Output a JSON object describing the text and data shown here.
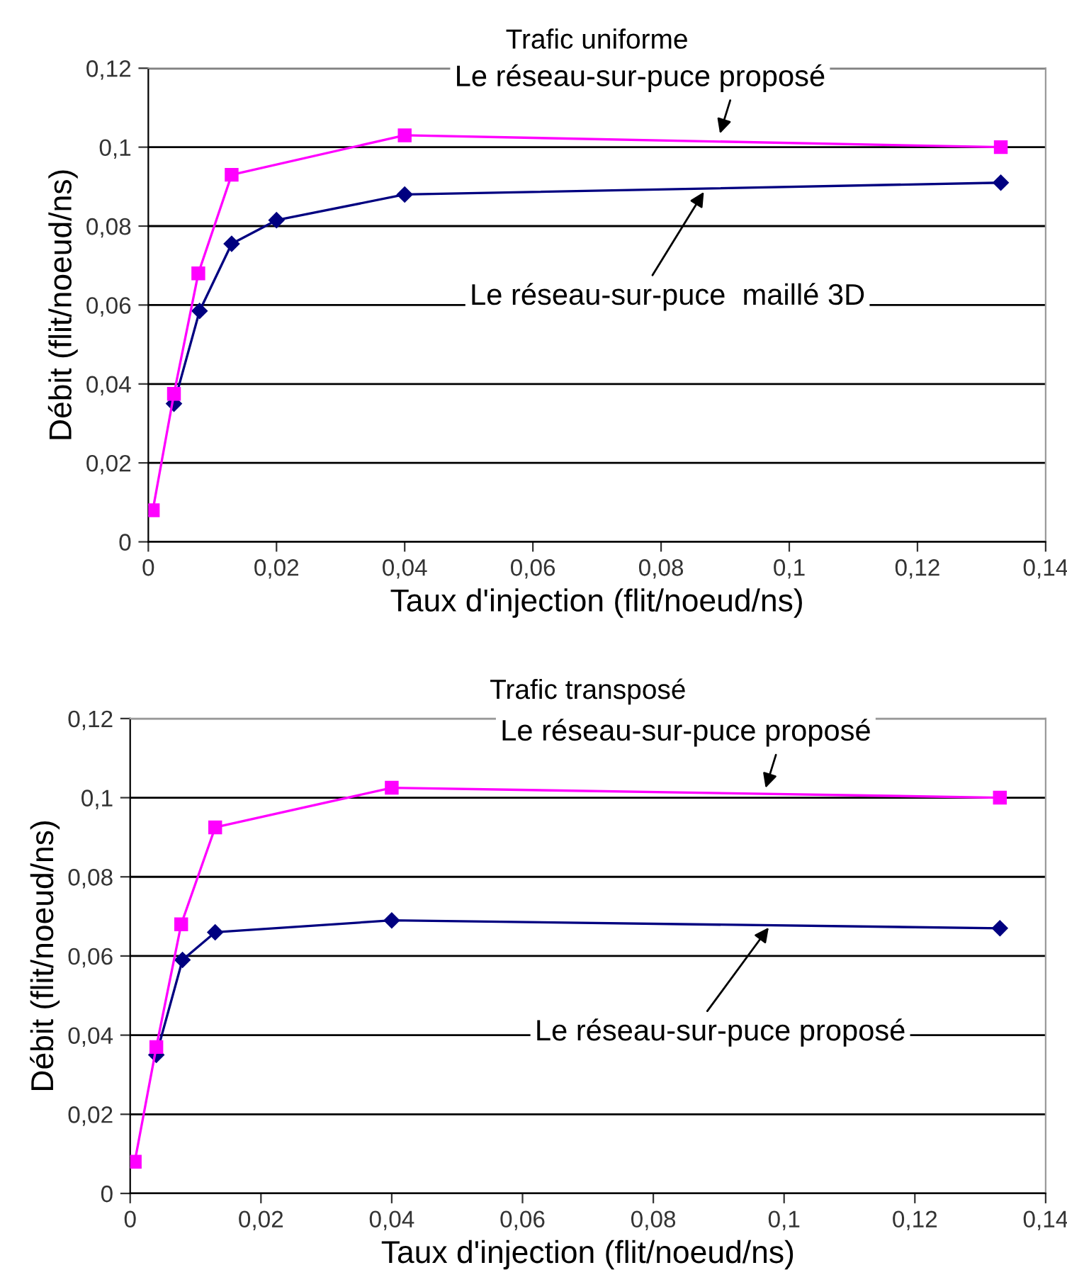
{
  "chart_data": [
    {
      "type": "line",
      "title": "Trafic uniforme",
      "xlabel": "Taux d'injection (flit/noeud/ns)",
      "ylabel": "Débit (flit/noeud/ns)",
      "xlim": [
        0,
        0.14
      ],
      "ylim": [
        0,
        0.12
      ],
      "xticks": [
        {
          "value": 0,
          "label": "0"
        },
        {
          "value": 0.02,
          "label": "0,02"
        },
        {
          "value": 0.04,
          "label": "0,04"
        },
        {
          "value": 0.06,
          "label": "0,06"
        },
        {
          "value": 0.08,
          "label": "0,08"
        },
        {
          "value": 0.1,
          "label": "0,1"
        },
        {
          "value": 0.12,
          "label": "0,12"
        },
        {
          "value": 0.14,
          "label": "0,14"
        }
      ],
      "yticks": [
        {
          "value": 0,
          "label": "0"
        },
        {
          "value": 0.02,
          "label": "0,02"
        },
        {
          "value": 0.04,
          "label": "0,04"
        },
        {
          "value": 0.06,
          "label": "0,06"
        },
        {
          "value": 0.08,
          "label": "0,08"
        },
        {
          "value": 0.1,
          "label": "0,1"
        },
        {
          "value": 0.12,
          "label": "0,12"
        }
      ],
      "grid": "y",
      "legend": false,
      "series": [
        {
          "color": "#ff00ff",
          "marker": "square",
          "x": [
            0.0007,
            0.004,
            0.0078,
            0.013,
            0.04,
            0.133
          ],
          "values": [
            0.008,
            0.0375,
            0.068,
            0.093,
            0.103,
            0.1
          ]
        },
        {
          "color": "#000080",
          "marker": "diamond",
          "x": [
            0.004,
            0.008,
            0.013,
            0.02,
            0.04,
            0.133
          ],
          "values": [
            0.035,
            0.0585,
            0.0755,
            0.0815,
            0.088,
            0.091
          ]
        }
      ],
      "annotations": [
        {
          "text": "Le réseau-sur-puce proposé",
          "x": 0.089,
          "y": 0.1025
        },
        {
          "text": "Le réseau-sur-puce  maillé 3D",
          "x": 0.087,
          "y": 0.0895
        }
      ]
    },
    {
      "type": "line",
      "title": "Trafic transposé",
      "xlabel": "Taux d'injection (flit/noeud/ns)",
      "ylabel": "Débit (flit/noeud/ns)",
      "xlim": [
        0,
        0.14
      ],
      "ylim": [
        0,
        0.12
      ],
      "xticks": [
        {
          "value": 0,
          "label": "0"
        },
        {
          "value": 0.02,
          "label": "0,02"
        },
        {
          "value": 0.04,
          "label": "0,04"
        },
        {
          "value": 0.06,
          "label": "0,06"
        },
        {
          "value": 0.08,
          "label": "0,08"
        },
        {
          "value": 0.1,
          "label": "0,1"
        },
        {
          "value": 0.12,
          "label": "0,12"
        },
        {
          "value": 0.14,
          "label": "0,14"
        }
      ],
      "yticks": [
        {
          "value": 0,
          "label": "0"
        },
        {
          "value": 0.02,
          "label": "0,02"
        },
        {
          "value": 0.04,
          "label": "0,04"
        },
        {
          "value": 0.06,
          "label": "0,06"
        },
        {
          "value": 0.08,
          "label": "0,08"
        },
        {
          "value": 0.1,
          "label": "0,1"
        },
        {
          "value": 0.12,
          "label": "0,12"
        }
      ],
      "grid": "y",
      "legend": false,
      "series": [
        {
          "color": "#ff00ff",
          "marker": "square",
          "x": [
            0.0007,
            0.004,
            0.0078,
            0.013,
            0.04,
            0.133
          ],
          "values": [
            0.008,
            0.037,
            0.068,
            0.0925,
            0.1025,
            0.1
          ]
        },
        {
          "color": "#000080",
          "marker": "diamond",
          "x": [
            0.004,
            0.008,
            0.013,
            0.04,
            0.133
          ],
          "values": [
            0.035,
            0.059,
            0.066,
            0.069,
            0.067
          ]
        }
      ],
      "annotations": [
        {
          "text": "Le réseau-sur-puce proposé",
          "x": 0.097,
          "y": 0.1015
        },
        {
          "text": "Le réseau-sur-puce proposé",
          "x": 0.098,
          "y": 0.068
        }
      ]
    }
  ]
}
